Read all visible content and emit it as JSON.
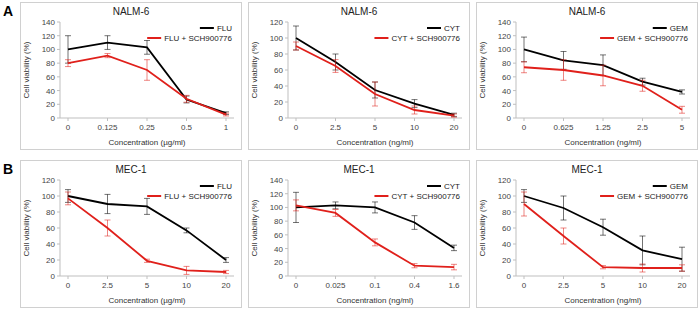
{
  "panel_labels": [
    "A",
    "B"
  ],
  "chart_data": [
    {
      "type": "line",
      "title": "NALM-6",
      "x_label": "Concentration (µg/ml)",
      "y_label": "Cell viability (%)",
      "categories": [
        "0",
        "0.125",
        "0.25",
        "0.5",
        "1"
      ],
      "ylim": [
        0,
        140
      ],
      "yticks": [
        0,
        20,
        40,
        60,
        80,
        100,
        120,
        140
      ],
      "grid": false,
      "legend": "top-right",
      "series": [
        {
          "name": "FLU",
          "color": "#000000",
          "values": [
            100,
            110,
            103,
            27,
            7
          ],
          "errors": [
            20,
            10,
            10,
            5,
            2
          ]
        },
        {
          "name": "FLU + SCH900776",
          "color": "#e0201b",
          "values": [
            80,
            91,
            70,
            28,
            5
          ],
          "errors": [
            5,
            3,
            15,
            5,
            2
          ]
        }
      ]
    },
    {
      "type": "line",
      "title": "NALM-6",
      "x_label": "Concentration (ng/ml)",
      "y_label": "Cell viability (%)",
      "categories": [
        "0",
        "2.5",
        "5",
        "10",
        "20"
      ],
      "ylim": [
        0,
        120
      ],
      "yticks": [
        0,
        20,
        40,
        60,
        80,
        100,
        120
      ],
      "grid": false,
      "legend": "top-right",
      "series": [
        {
          "name": "CYT",
          "color": "#000000",
          "values": [
            100,
            70,
            35,
            18,
            4
          ],
          "errors": [
            15,
            10,
            10,
            5,
            2
          ]
        },
        {
          "name": "CYT + SCH900776",
          "color": "#e0201b",
          "values": [
            90,
            65,
            30,
            10,
            3
          ],
          "errors": [
            5,
            8,
            15,
            5,
            2
          ]
        }
      ]
    },
    {
      "type": "line",
      "title": "NALM-6",
      "x_label": "Concentration (ng/ml)",
      "y_label": "Cell viability (%)",
      "categories": [
        "0",
        "0.625",
        "1.25",
        "2.5",
        "5"
      ],
      "ylim": [
        0,
        140
      ],
      "yticks": [
        0,
        20,
        40,
        60,
        80,
        100,
        120,
        140
      ],
      "grid": false,
      "legend": "top-right",
      "series": [
        {
          "name": "GEM",
          "color": "#000000",
          "values": [
            100,
            84,
            77,
            53,
            38
          ],
          "errors": [
            18,
            13,
            15,
            5,
            3
          ]
        },
        {
          "name": "GEM + SCH900776",
          "color": "#e0201b",
          "values": [
            74,
            70,
            62,
            47,
            12
          ],
          "errors": [
            8,
            15,
            15,
            8,
            5
          ]
        }
      ]
    },
    {
      "type": "line",
      "title": "MEC-1",
      "x_label": "Concentration (µg/ml)",
      "y_label": "Cell viability (%)",
      "categories": [
        "0",
        "2.5",
        "5",
        "10",
        "20"
      ],
      "ylim": [
        0,
        120
      ],
      "yticks": [
        0,
        20,
        40,
        60,
        80,
        100,
        120
      ],
      "grid": false,
      "legend": "top-right",
      "series": [
        {
          "name": "FLU",
          "color": "#000000",
          "values": [
            100,
            90,
            87,
            57,
            20
          ],
          "errors": [
            8,
            12,
            10,
            3,
            3
          ]
        },
        {
          "name": "FLU + SCH900776",
          "color": "#e0201b",
          "values": [
            97,
            60,
            19,
            7,
            5
          ],
          "errors": [
            8,
            10,
            2,
            5,
            2
          ]
        }
      ]
    },
    {
      "type": "line",
      "title": "MEC-1",
      "x_label": "Concentration (ng/ml)",
      "y_label": "Cell viability (%)",
      "categories": [
        "0",
        "0.025",
        "0.1",
        "0.4",
        "1.6"
      ],
      "ylim": [
        0,
        140
      ],
      "yticks": [
        0,
        20,
        40,
        60,
        80,
        100,
        120,
        140
      ],
      "grid": false,
      "legend": "top-right",
      "series": [
        {
          "name": "CYT",
          "color": "#000000",
          "values": [
            100,
            103,
            100,
            78,
            41
          ],
          "errors": [
            22,
            5,
            8,
            10,
            4
          ]
        },
        {
          "name": "CYT + SCH900776",
          "color": "#e0201b",
          "values": [
            103,
            92,
            49,
            15,
            13
          ],
          "errors": [
            8,
            5,
            5,
            3,
            4
          ]
        }
      ]
    },
    {
      "type": "line",
      "title": "MEC-1",
      "x_label": "Concentration (ng/ml)",
      "y_label": "Cell viability (%)",
      "categories": [
        "0",
        "2.5",
        "5",
        "10",
        "20"
      ],
      "ylim": [
        0,
        120
      ],
      "yticks": [
        0,
        20,
        40,
        60,
        80,
        100,
        120
      ],
      "grid": false,
      "legend": "top-right",
      "series": [
        {
          "name": "GEM",
          "color": "#000000",
          "values": [
            100,
            85,
            61,
            32,
            21
          ],
          "errors": [
            8,
            15,
            10,
            18,
            15
          ]
        },
        {
          "name": "GEM + SCH900776",
          "color": "#e0201b",
          "values": [
            90,
            50,
            11,
            10,
            10
          ],
          "errors": [
            15,
            10,
            2,
            5,
            4
          ]
        }
      ]
    }
  ]
}
